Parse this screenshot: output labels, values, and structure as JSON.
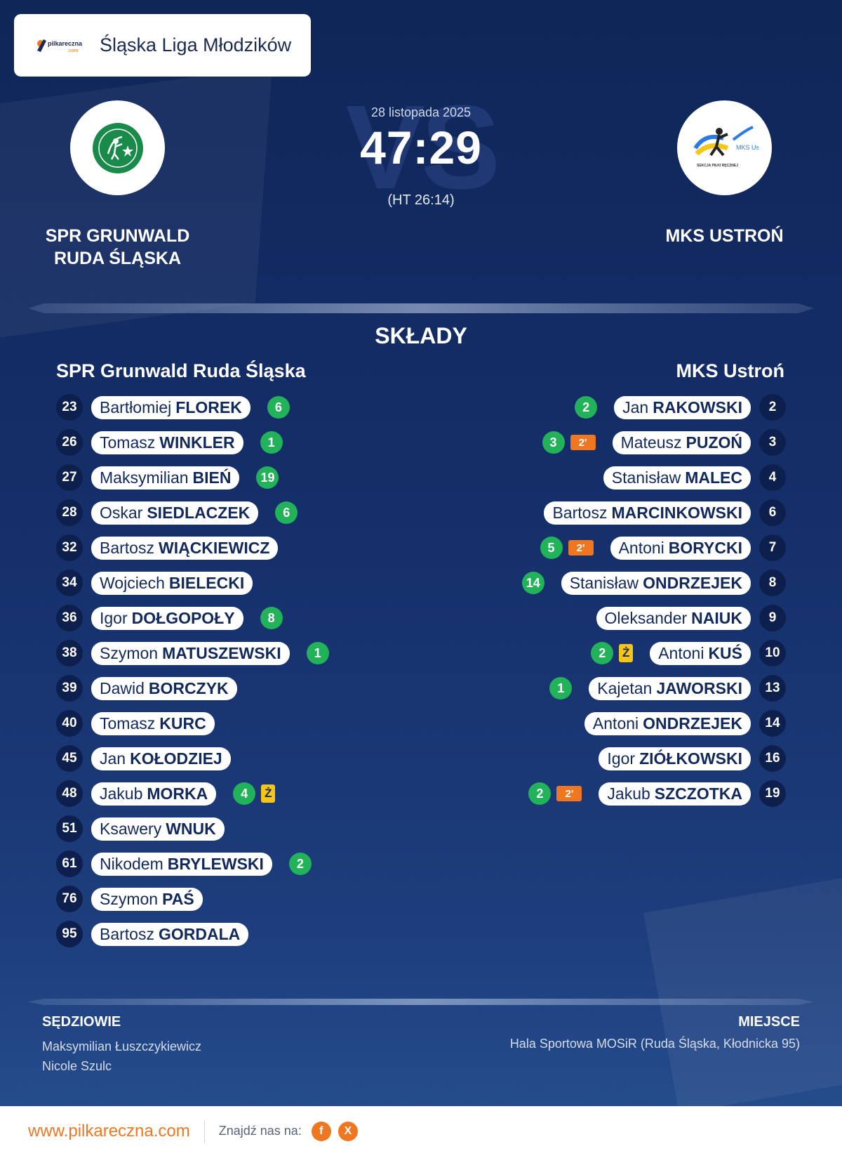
{
  "league": {
    "name": "Śląska Liga Młodzików",
    "logo_text": "pilkareczna",
    "logo_sub": ".com"
  },
  "match": {
    "date": "28 listopada 2025",
    "score": "47:29",
    "halftime": "(HT 26:14)",
    "vs_text": "VS"
  },
  "home": {
    "name_line1": "SPR GRUNWALD",
    "name_line2": "RUDA ŚLĄSKA",
    "lineup_title": "SPR Grunwald Ruda Śląska",
    "logo_color": "#1a8a4a",
    "players": [
      {
        "num": "23",
        "first": "Bartłomiej",
        "last": "FLOREK",
        "goals": "6"
      },
      {
        "num": "26",
        "first": "Tomasz",
        "last": "WINKLER",
        "goals": "1"
      },
      {
        "num": "27",
        "first": "Maksymilian",
        "last": "BIEŃ",
        "goals": "19"
      },
      {
        "num": "28",
        "first": "Oskar",
        "last": "SIEDLACZEK",
        "goals": "6"
      },
      {
        "num": "32",
        "first": "Bartosz",
        "last": "WIĄCKIEWICZ",
        "goals": ""
      },
      {
        "num": "34",
        "first": "Wojciech",
        "last": "BIELECKI",
        "goals": ""
      },
      {
        "num": "36",
        "first": "Igor",
        "last": "DOŁGOPOŁY",
        "goals": "8"
      },
      {
        "num": "38",
        "first": "Szymon",
        "last": "MATUSZEWSKI",
        "goals": "1"
      },
      {
        "num": "39",
        "first": "Dawid",
        "last": "BORCZYK",
        "goals": ""
      },
      {
        "num": "40",
        "first": "Tomasz",
        "last": "KURC",
        "goals": ""
      },
      {
        "num": "45",
        "first": "Jan",
        "last": "KOŁODZIEJ",
        "goals": ""
      },
      {
        "num": "48",
        "first": "Jakub",
        "last": "MORKA",
        "goals": "4",
        "yellow": "Ż"
      },
      {
        "num": "51",
        "first": "Ksawery",
        "last": "WNUK",
        "goals": ""
      },
      {
        "num": "61",
        "first": "Nikodem",
        "last": "BRYLEWSKI",
        "goals": "2"
      },
      {
        "num": "76",
        "first": "Szymon",
        "last": "PAŚ",
        "goals": ""
      },
      {
        "num": "95",
        "first": "Bartosz",
        "last": "GORDALA",
        "goals": ""
      }
    ]
  },
  "away": {
    "name": "MKS USTROŃ",
    "lineup_title": "MKS Ustroń",
    "logo_text": "MKS Ustroń",
    "logo_sub": "SEKCJA PIŁKI RĘCZNEJ",
    "players": [
      {
        "num": "2",
        "first": "Jan",
        "last": "RAKOWSKI",
        "goals": "2"
      },
      {
        "num": "3",
        "first": "Mateusz",
        "last": "PUZOŃ",
        "goals": "3",
        "susp": "2'"
      },
      {
        "num": "4",
        "first": "Stanisław",
        "last": "MALEC",
        "goals": ""
      },
      {
        "num": "6",
        "first": "Bartosz",
        "last": "MARCINKOWSKI",
        "goals": ""
      },
      {
        "num": "7",
        "first": "Antoni",
        "last": "BORYCKI",
        "goals": "5",
        "susp": "2'"
      },
      {
        "num": "8",
        "first": "Stanisław",
        "last": "ONDRZEJEK",
        "goals": "14"
      },
      {
        "num": "9",
        "first": "Oleksander",
        "last": "NAIUK",
        "goals": ""
      },
      {
        "num": "10",
        "first": "Antoni",
        "last": "KUŚ",
        "goals": "2",
        "yellow": "Ż"
      },
      {
        "num": "13",
        "first": "Kajetan",
        "last": "JAWORSKI",
        "goals": "1"
      },
      {
        "num": "14",
        "first": "Antoni",
        "last": "ONDRZEJEK",
        "goals": ""
      },
      {
        "num": "16",
        "first": "Igor",
        "last": "ZIÓŁKOWSKI",
        "goals": ""
      },
      {
        "num": "19",
        "first": "Jakub",
        "last": "SZCZOTKA",
        "goals": "2",
        "susp": "2'"
      }
    ]
  },
  "section_title": "SKŁADY",
  "referees": {
    "title": "SĘDZIOWIE",
    "names": [
      "Maksymilian Łuszczykiewicz",
      "Nicole Szulc"
    ]
  },
  "venue": {
    "title": "MIEJSCE",
    "value": "Hala Sportowa MOSiR (Ruda Śląska, Kłodnicka 95)"
  },
  "footer": {
    "url": "www.pilkareczna.com",
    "find_us": "Znajdź nas na:",
    "social": [
      {
        "icon": "facebook-icon",
        "glyph": "f"
      },
      {
        "icon": "x-icon",
        "glyph": "X"
      }
    ]
  },
  "colors": {
    "accent": "#f07722",
    "goal": "#22b25a",
    "yellow_card": "#f5c518",
    "suspension": "#f07722",
    "navy": "#0c1f4d"
  }
}
